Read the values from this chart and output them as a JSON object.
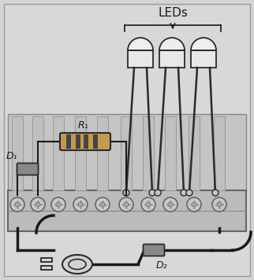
{
  "title": "",
  "bg_color": "#d4d4d4",
  "board_color": "#c8c8c8",
  "terminal_color": "#d0d0d0",
  "wire_color": "#1a1a1a",
  "component_color": "#2a2a2a",
  "text_color": "#1a1a1a",
  "leds_label": "LEDs",
  "r1_label": "R₁",
  "d1_label": "D₁",
  "d2_label": "D₂",
  "fig_width": 3.22,
  "fig_height": 3.56,
  "dpi": 100
}
